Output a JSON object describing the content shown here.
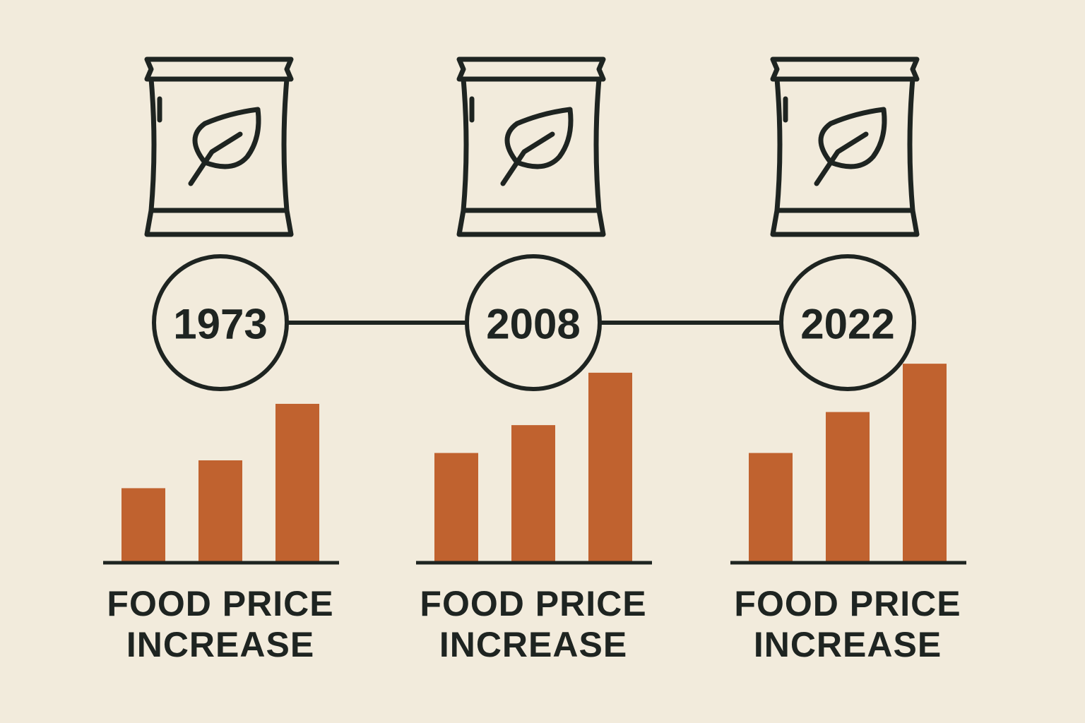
{
  "chart_data": [
    {
      "type": "bar",
      "annotation": "1973",
      "title": "FOOD PRICE INCREASE",
      "categories": [
        null,
        null,
        null
      ],
      "values": [
        91,
        125,
        194
      ],
      "color": "#c0622f",
      "ylim": [
        0,
        250
      ]
    },
    {
      "type": "bar",
      "annotation": "2008",
      "title": "FOOD PRICE INCREASE",
      "categories": [
        null,
        null,
        null
      ],
      "values": [
        134,
        168,
        232
      ],
      "color": "#c0622f",
      "ylim": [
        0,
        250
      ]
    },
    {
      "type": "bar",
      "annotation": "2022",
      "title": "FOOD PRICE INCREASE",
      "categories": [
        null,
        null,
        null
      ],
      "values": [
        134,
        184,
        243
      ],
      "color": "#c0622f",
      "ylim": [
        0,
        250
      ]
    }
  ]
}
